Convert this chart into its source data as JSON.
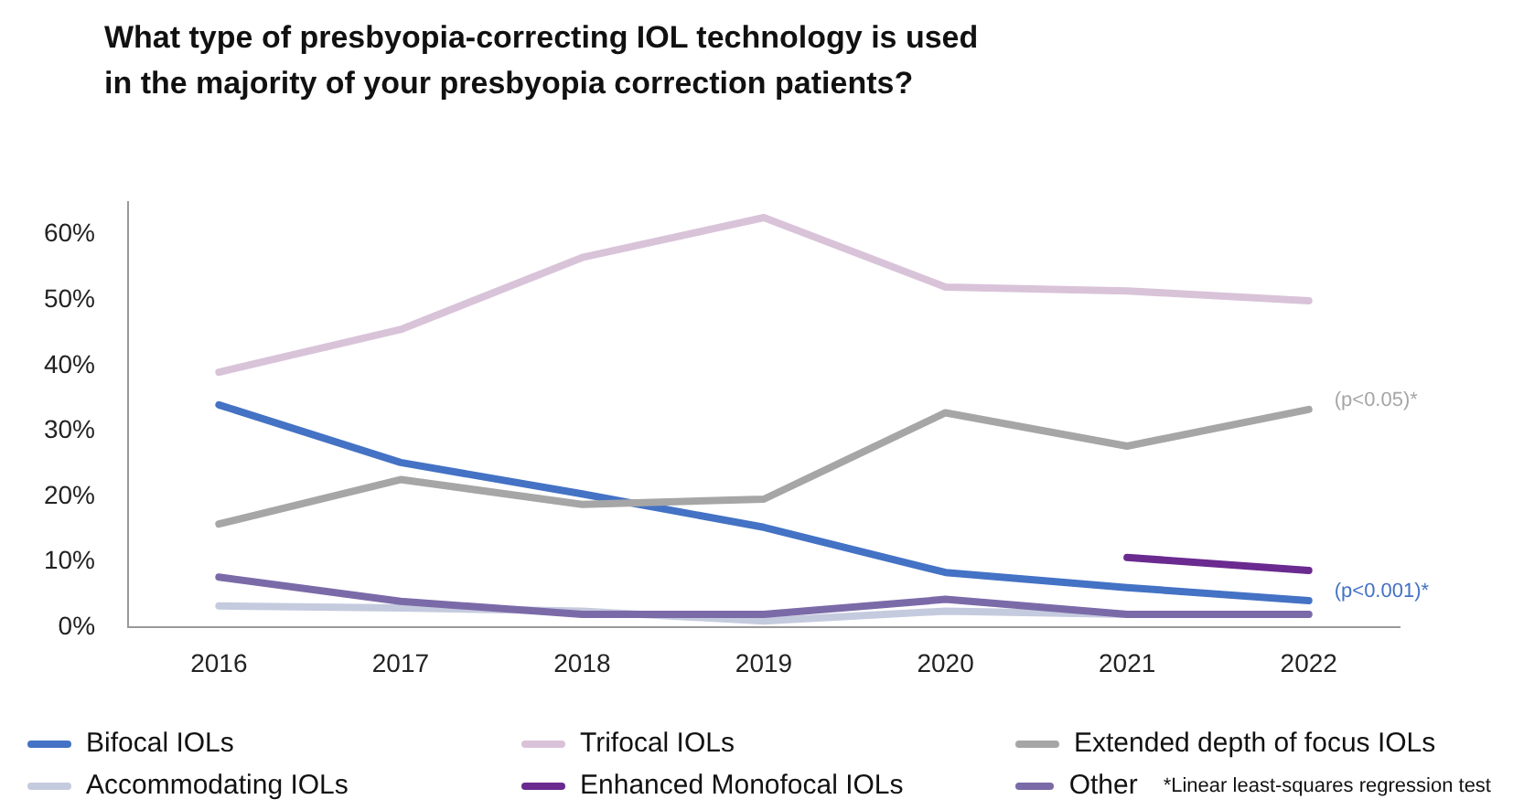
{
  "chart_data": {
    "type": "line",
    "title": "What type of presbyopia-correcting IOL technology is used\nin the majority of your presbyopia correction patients?",
    "categories": [
      "2016",
      "2017",
      "2018",
      "2019",
      "2020",
      "2021",
      "2022"
    ],
    "series": [
      {
        "name": "Bifocal IOLs",
        "color": "#4472c4",
        "values": [
          34,
          25.2,
          20.4,
          15.3,
          8.4,
          6.1,
          4.1
        ]
      },
      {
        "name": "Trifocal IOLs",
        "color": "#d9c3d9",
        "values": [
          39,
          45.5,
          56.5,
          62.6,
          52,
          51.4,
          49.9
        ]
      },
      {
        "name": "Extended depth of focus IOLs",
        "color": "#a6a6a6",
        "values": [
          15.8,
          22.6,
          18.8,
          19.6,
          32.8,
          27.7,
          33.3
        ]
      },
      {
        "name": "Accommodating IOLs",
        "color": "#c5cbde",
        "values": [
          3.3,
          3,
          2.5,
          1,
          2.5,
          2,
          2
        ]
      },
      {
        "name": "Enhanced Monofocal IOLs",
        "color": "#6a2a8f",
        "values": [
          null,
          null,
          null,
          null,
          null,
          10.7,
          8.7
        ]
      },
      {
        "name": "Other",
        "color": "#7b6aa8",
        "values": [
          7.7,
          4,
          2,
          2,
          4.3,
          2,
          2
        ]
      }
    ],
    "ylim": [
      0,
      65
    ],
    "yticks": [
      {
        "value": 0,
        "label": "0%"
      },
      {
        "value": 10,
        "label": "10%"
      },
      {
        "value": 20,
        "label": "20%"
      },
      {
        "value": 30,
        "label": "30%"
      },
      {
        "value": 40,
        "label": "40%"
      },
      {
        "value": 50,
        "label": "50%"
      },
      {
        "value": 60,
        "label": "60%"
      }
    ],
    "grid": false,
    "legend": "bottom",
    "marker": "none",
    "line_style": "solid",
    "annotations": [
      {
        "text": "(p<0.05)*",
        "x": "2022",
        "y": 33.3
      },
      {
        "text": "(p<0.001)*",
        "x": "2022",
        "y": 4.1
      },
      "*Linear least-squares regression test"
    ]
  }
}
